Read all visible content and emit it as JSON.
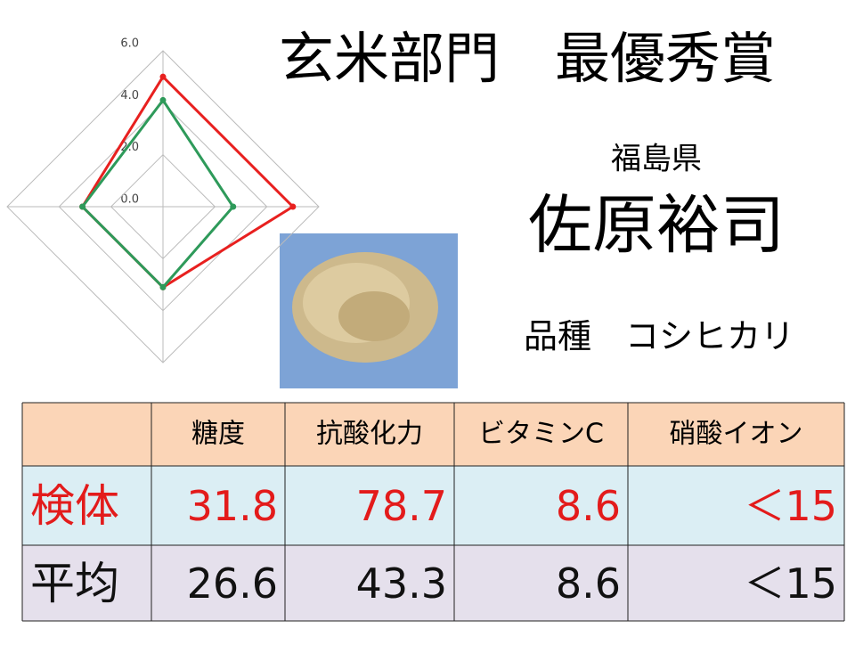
{
  "radar_chart": {
    "type": "radar",
    "rlim": [
      0,
      6
    ],
    "rticks": [
      {
        "value": 0,
        "label": "0.0"
      },
      {
        "value": 2,
        "label": "2.0"
      },
      {
        "value": 4,
        "label": "4.0"
      },
      {
        "value": 6,
        "label": "6.0"
      }
    ],
    "series": [
      {
        "color": "#e8201f",
        "values": [
          5.0,
          5.0,
          3.1,
          3.1
        ]
      },
      {
        "color": "#2e9a5a",
        "values": [
          4.1,
          2.7,
          3.1,
          3.1
        ]
      }
    ]
  },
  "header": {
    "title": "玄米部門　最優秀賞",
    "prefecture": "福島県",
    "name": "佐原裕司",
    "variety": "品種　コシヒカリ"
  },
  "table": {
    "columns": [
      "糖度",
      "抗酸化力",
      "ビタミンC",
      "硝酸イオン"
    ],
    "rows": [
      [
        "検体",
        "31.8",
        "78.7",
        "8.6",
        "＜15"
      ],
      [
        "平均",
        "26.6",
        "43.3",
        "8.6",
        "＜15"
      ]
    ]
  }
}
